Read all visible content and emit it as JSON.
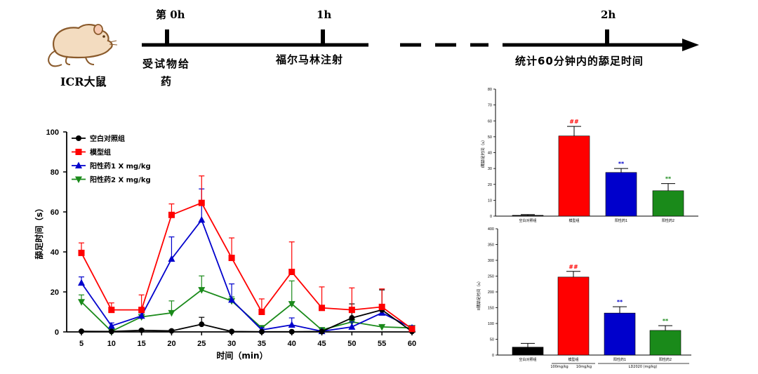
{
  "timeline": {
    "animal_label": "ICR大鼠",
    "marks": [
      {
        "label": "第 0h",
        "event": "受试物给药"
      },
      {
        "label": "1h",
        "event": "福尔马林注射"
      },
      {
        "label": "2h",
        "event": "统计60分钟内的舔足时间"
      }
    ]
  },
  "colors": {
    "blank": "#000000",
    "model": "#ff0000",
    "pos1": "#0000cc",
    "pos2": "#1a8a1a"
  },
  "chart_data": [
    {
      "type": "line",
      "title": "",
      "xlabel": "时间（min）",
      "ylabel": "舔足时间（s）",
      "x": [
        5,
        10,
        15,
        20,
        25,
        30,
        35,
        40,
        45,
        50,
        55,
        60
      ],
      "xlim": [
        5,
        60
      ],
      "ylim": [
        0,
        100
      ],
      "yticks": [
        0,
        20,
        40,
        60,
        80,
        100
      ],
      "legend_position": "top-left",
      "series": [
        {
          "name": "空白对照组",
          "key": "blank",
          "marker": "circle",
          "values": [
            0.3,
            0.2,
            0.8,
            0.5,
            3.8,
            0.2,
            0.1,
            0.1,
            0.2,
            7,
            11,
            0.2
          ],
          "errors": [
            0.3,
            0.2,
            0.5,
            0.5,
            3.5,
            0.2,
            0.2,
            0.2,
            0.2,
            7,
            10,
            0.2
          ]
        },
        {
          "name": "模型组",
          "key": "model",
          "marker": "square",
          "values": [
            39.5,
            11,
            11,
            58.5,
            64.5,
            37,
            10,
            30,
            12,
            11,
            12.5,
            1.5
          ],
          "errors": [
            5,
            3.5,
            7.5,
            5.5,
            13.5,
            10,
            6.5,
            15,
            10.5,
            11,
            9,
            1
          ]
        },
        {
          "name": "阳性药1 X mg/kg",
          "key": "pos1",
          "marker": "triangle-up",
          "values": [
            24.5,
            3,
            8,
            36.5,
            56,
            16,
            1,
            3.5,
            0.3,
            2.5,
            9.5,
            2
          ],
          "errors": [
            3,
            1.5,
            1.5,
            11,
            15.5,
            8,
            1,
            3.5,
            0.5,
            2.5,
            2,
            1
          ]
        },
        {
          "name": "阳性药2 X mg/kg",
          "key": "pos2",
          "marker": "triangle-down",
          "values": [
            15,
            0.3,
            7.5,
            9.5,
            21,
            15.5,
            2,
            14,
            1,
            5,
            2.5,
            2
          ],
          "errors": [
            3.5,
            0.3,
            1,
            6,
            7,
            2,
            1,
            11.5,
            0.5,
            1,
            1,
            1
          ]
        }
      ]
    },
    {
      "type": "bar",
      "title": "",
      "ylabel": "I期舔足时间（s）",
      "categories": [
        "空白对照组",
        "模型组",
        "阳性药1",
        "阳性药2"
      ],
      "values": [
        0.5,
        50.5,
        27.5,
        16
      ],
      "errors": [
        0.5,
        6,
        2.5,
        4.5
      ],
      "annotations": [
        "",
        "##",
        "**",
        "**"
      ],
      "ylim": [
        0,
        80
      ],
      "yticks": [
        0,
        10,
        20,
        30,
        40,
        50,
        60,
        70,
        80
      ]
    },
    {
      "type": "bar",
      "title": "",
      "ylabel": "II期舔足时间（s）",
      "categories": [
        "空白对照组",
        "模型组",
        "阳性药1",
        "阳性药2"
      ],
      "values": [
        25,
        247,
        133,
        78
      ],
      "errors": [
        12,
        18,
        20,
        15
      ],
      "annotations": [
        "",
        "##",
        "**",
        "**"
      ],
      "ylim": [
        0,
        400
      ],
      "yticks": [
        0,
        50,
        100,
        150,
        200,
        250,
        300,
        350,
        400
      ],
      "dose_labels": [
        "100mg/kg",
        "10mg/kg",
        "LD2020 (mg/kg)"
      ]
    }
  ]
}
